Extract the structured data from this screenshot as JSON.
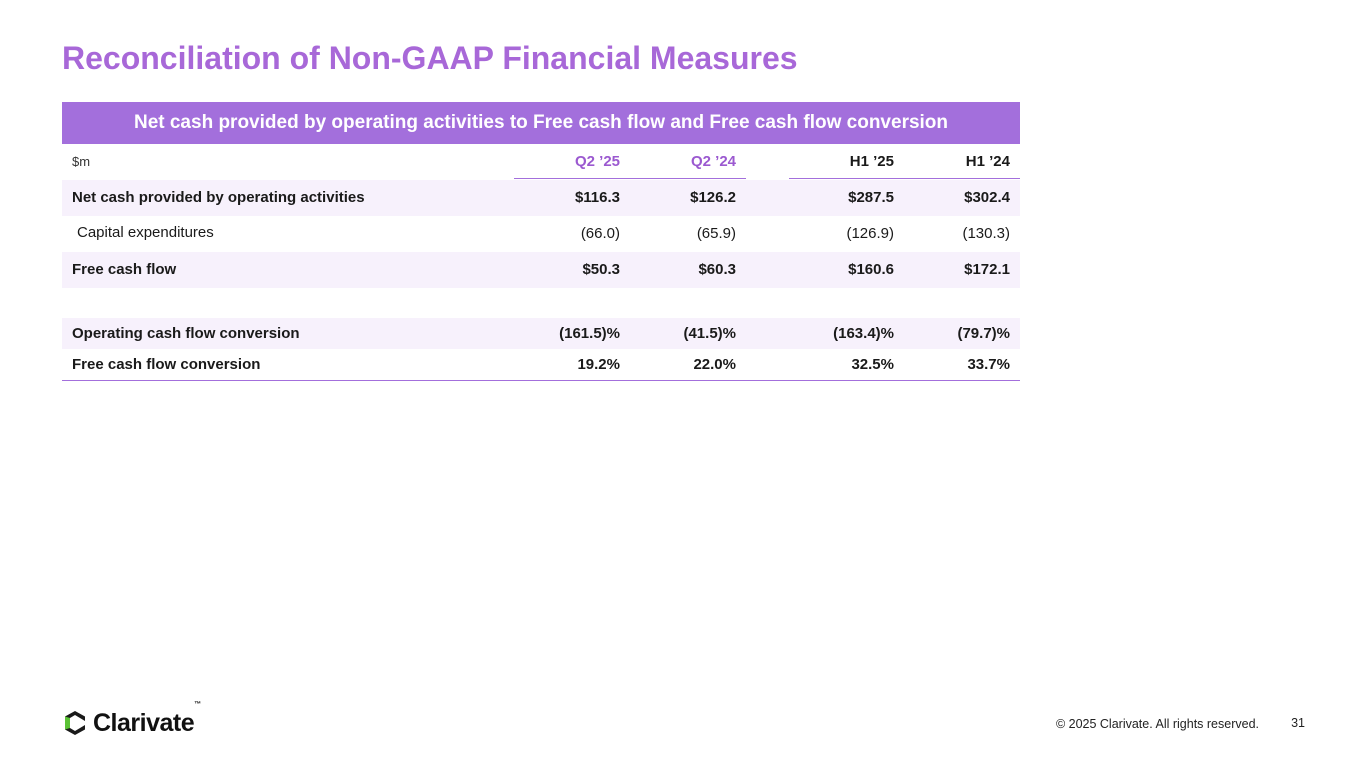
{
  "slide": {
    "title": "Reconciliation of Non-GAAP Financial Measures",
    "page_number": "31",
    "copyright": "© 2025 Clarivate. All rights reserved.",
    "logo_text": "Clarivate",
    "logo_tm": "™"
  },
  "table": {
    "banner": "Net cash provided by operating activities to Free cash flow and Free cash flow conversion",
    "unit_label": "$m",
    "headers": [
      "Q2 ’25",
      "Q2 ’24",
      "H1 ’25",
      "H1 ’24"
    ],
    "rows": [
      {
        "label": "Net cash provided by operating activities",
        "values": [
          "$116.3",
          "$126.2",
          "$287.5",
          "$302.4"
        ]
      },
      {
        "label": "Capital expenditures",
        "values": [
          "(66.0)",
          "(65.9)",
          "(126.9)",
          "(130.3)"
        ]
      },
      {
        "label": "Free cash flow",
        "values": [
          "$50.3",
          "$60.3",
          "$160.6",
          "$172.1"
        ]
      },
      {
        "label": "Operating cash flow conversion",
        "values": [
          "(161.5)%",
          "(41.5)%",
          "(163.4)%",
          "(79.7)%"
        ]
      },
      {
        "label": "Free cash flow conversion",
        "values": [
          "19.2%",
          "22.0%",
          "32.5%",
          "33.7%"
        ]
      }
    ]
  },
  "colors": {
    "accent": "#a36fdc",
    "title": "#a868d8",
    "row_shade": "#f7f1fc"
  }
}
